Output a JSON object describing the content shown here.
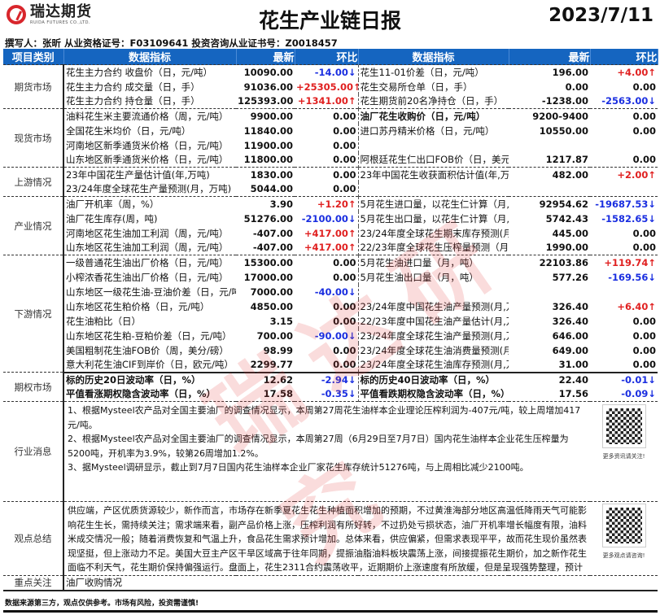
{
  "header": {
    "logo_cn": "瑞达期货",
    "logo_en": "RUIDA FUTURES CO.,LTD.",
    "title": "花生产业链日报",
    "date": "2023/7/11",
    "author": "撰写人：张昕   从业资格证号：F03109641   投资咨询从业证书号：Z0018457"
  },
  "columns": [
    "项目类别",
    "数据指标",
    "最新",
    "环比",
    "数据指标",
    "最新",
    "环比"
  ],
  "colors": {
    "header_bg": "#1565c0",
    "up": "#e02020",
    "down": "#1a2ee0"
  },
  "sections": [
    {
      "category": "期货市场",
      "rows": [
        [
          "花生主力合约 收盘价（日，元/吨）",
          "10090.00",
          "-14.00↓",
          "花生11-01价差（日，元/吨）",
          "196.00",
          "+4.00↑"
        ],
        [
          "花生主力合约 成交量（日，手）",
          "91036.00",
          "+25305.00↑",
          "花生交易所仓单（日，手）",
          "0.00",
          "0.00"
        ],
        [
          "花生主力合约 持仓量（日，手）",
          "125393.00",
          "+1341.00↑",
          "花生期货前20名净持仓（日，手）",
          "-1238.00",
          "-2563.00↓"
        ]
      ]
    },
    {
      "category": "现货市场",
      "rows": [
        [
          "油料花生米主要流通价格（周，元/吨）",
          "9900.00",
          "0.00",
          "油厂花生收购价（日，元/吨）",
          "9200-9400",
          "0.00"
        ],
        [
          "全国花生米均价（日，元/吨）",
          "11840.00",
          "0.00",
          "进口苏丹精米价格（日，元/吨）",
          "10550.00",
          "0.00"
        ],
        [
          "河南地区新季通货米价格（日，元/吨）",
          "11900.00",
          "0.00",
          "",
          "",
          ""
        ],
        [
          "山东地区新季通货米价格（日，元/吨）",
          "11800.00",
          "0.00",
          "阿根廷花生仁出口FOB价（日，美元/吨）",
          "1217.87",
          "0.00"
        ]
      ]
    },
    {
      "category": "上游情况",
      "rows": [
        [
          "23年中国花生产量估计值(年,万吨)",
          "1830.00",
          "0.00",
          "23年中国花生收获面积估计值(年,万公顷)",
          "482.00",
          "+2.00↑"
        ],
        [
          "23/24年度全球花生产量预测(月，万吨)",
          "5044.00",
          "0.00",
          "",
          "",
          ""
        ]
      ]
    },
    {
      "category": "产业情况",
      "rows": [
        [
          "油厂开机率（周，%）",
          "3.90",
          "+1.20↑",
          "5月花生进口量，以花生仁计算（月,吨）",
          "92954.62",
          "-19687.53↓"
        ],
        [
          "油厂花生库存(周，吨)",
          "51276.00",
          "-2100.00↓",
          "5月花生出口量，以花生仁计算（月,吨）",
          "5742.43",
          "-1582.65↓"
        ],
        [
          "河南地区花生油加工利润（周，元/吨）",
          "-407.00",
          "+417.00↑",
          "23/24年度全球花生期末库存预测(月,万吨)",
          "445.00",
          "0.00"
        ],
        [
          "山东地区花生油加工利润（周，元/吨）",
          "-407.00",
          "+417.00↑",
          "22/23年度全球花生压榨量预测（月,万吨)",
          "1990.00",
          "0.00"
        ]
      ]
    },
    {
      "category": "下游情况",
      "rows": [
        [
          "一级普通花生油出厂价格（日，元/吨）",
          "15300.00",
          "0.00",
          "5月花生油进口量（月，吨）",
          "22103.86",
          "+119.74↑"
        ],
        [
          "小榨浓香花生油出厂价格（日，元/吨）",
          "17000.00",
          "0.00",
          "5月花生油出口量（月，吨）",
          "577.26",
          "-169.56↓"
        ],
        [
          "山东地区一级花生油-豆油价差（日，元/吨",
          "7000.00",
          "-40.00↓",
          "",
          "",
          ""
        ],
        [
          "山东地区花生粕价格（日，元/吨）",
          "4850.00",
          "0.00",
          "23/24年度中国花生油产量预测(月,万吨)",
          "326.40",
          "+6.40↑"
        ],
        [
          "花生油粕比（日）",
          "3.15",
          "0.00",
          "22/23年度中国花生油产量估计(月,万吨)",
          "326.40",
          "0.00"
        ],
        [
          "山东地区花生粕-豆粕价差（日，元/吨）",
          "700.00",
          "-90.00↓",
          "23/24年度全球花生油产量预测(月,万吨)",
          "646.00",
          "0.00"
        ],
        [
          "美国粗制花生油FOB价（周，美分/磅）",
          "98.99",
          "0.00",
          "23/24年度全球花生油消费量预测(月,万吨)",
          "649.00",
          "0.00"
        ],
        [
          "意大利花生油CIF到岸价（日，欧元/吨）",
          "2299.77",
          "0.00",
          "23/24年度全球花生油库存预测(月,万吨)",
          "31.00",
          "0.00"
        ]
      ]
    },
    {
      "category": "期权市场",
      "bold": true,
      "rows": [
        [
          "标的历史20日波动率（日，%）",
          "12.62",
          "-2.94↓",
          "标的历史40日波动率（日，%）",
          "22.40",
          "-0.01↓"
        ],
        [
          "平值看涨期权隐含波动率（日，%）",
          "17.58",
          "-0.35↓",
          "平值看跌期权隐含波动率（日，%）",
          "17.56",
          "-0.09↓"
        ]
      ]
    }
  ],
  "news": {
    "category": "行业消息",
    "lines": [
      "1、根据Mysteel农产品对全国主要油厂的调查情况显示，本周第27周花生油样本企业理论压榨利润为-407元/吨，较上周增加417元/吨。",
      "2、根据Mysteel农产品对全国主要油厂的调查情况显示，本周第27周（6月29日至7月7日）国内花生油样本企业花生压榨量为5200吨，开机率为3.9%，较第26周增加1.2%。",
      "3、据Mysteel调研显示，截止到7月7日国内花生油样本企业厂家花生库存统计51276吨，与上周相比减少2100吨。"
    ],
    "qr_caption": "更多资讯请关注!"
  },
  "view": {
    "category": "观点总结",
    "text": "供应端，产区优质货源较少，新作而言，市场存在新季夏花生花生种植面积增加的预期，不过黄淮海部分地区高温低降雨天气可能影响花生生长，需持续关注；需求端来看，副产品价格上涨，压榨利润有所好转，不过扔处亏损状态，油厂开机率增长幅度有限，油料米成交情况一般；随着消费恢复和气温上升，食品花生需求预计增加。总体来看，供应偏紧，但需求表现平平，故而花生现价虽然表现坚挺，但上涨动力不足。美国大豆主产区干旱区域高于往年同期，提振油脂油料板块震荡上涨，间接提振花生期价，加之新作花生面临不利天气，花生期价保持偏强运行。盘面上，花生2311合约震荡收平，近期期价上涨速度有所放缓，但是呈现强势整理，预计短期走势",
    "qr_caption": "更多观点请咨询!"
  },
  "focus": {
    "category": "重点关注",
    "text": "油厂收购情况"
  },
  "watermark": "瑞达研究",
  "footer": "数据来源第三方，观点仅供参考。市场有风险，投资需谨慎!"
}
